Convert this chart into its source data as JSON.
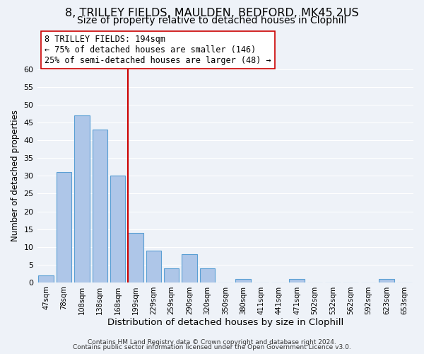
{
  "title": "8, TRILLEY FIELDS, MAULDEN, BEDFORD, MK45 2US",
  "subtitle": "Size of property relative to detached houses in Clophill",
  "xlabel": "Distribution of detached houses by size in Clophill",
  "ylabel": "Number of detached properties",
  "footer_lines": [
    "Contains HM Land Registry data © Crown copyright and database right 2024.",
    "Contains public sector information licensed under the Open Government Licence v3.0."
  ],
  "bin_labels": [
    "47sqm",
    "78sqm",
    "108sqm",
    "138sqm",
    "168sqm",
    "199sqm",
    "229sqm",
    "259sqm",
    "290sqm",
    "320sqm",
    "350sqm",
    "380sqm",
    "411sqm",
    "441sqm",
    "471sqm",
    "502sqm",
    "532sqm",
    "562sqm",
    "592sqm",
    "623sqm",
    "653sqm"
  ],
  "bar_heights": [
    2,
    31,
    47,
    43,
    30,
    14,
    9,
    4,
    8,
    4,
    0,
    1,
    0,
    0,
    1,
    0,
    0,
    0,
    0,
    1,
    0
  ],
  "bar_color": "#aec6e8",
  "bar_edge_color": "#5a9fd4",
  "vline_x_index": 5,
  "vline_color": "#cc0000",
  "annotation_line1": "8 TRILLEY FIELDS: 194sqm",
  "annotation_line2": "← 75% of detached houses are smaller (146)",
  "annotation_line3": "25% of semi-detached houses are larger (48) →",
  "annotation_border_color": "#cc0000",
  "ylim": [
    0,
    60
  ],
  "yticks": [
    0,
    5,
    10,
    15,
    20,
    25,
    30,
    35,
    40,
    45,
    50,
    55,
    60
  ],
  "background_color": "#eef2f8",
  "grid_color": "#ffffff",
  "title_fontsize": 11.5,
  "subtitle_fontsize": 10,
  "ylabel_fontsize": 8.5,
  "xlabel_fontsize": 9.5,
  "annotation_fontsize": 8.5,
  "footer_fontsize": 6.5
}
